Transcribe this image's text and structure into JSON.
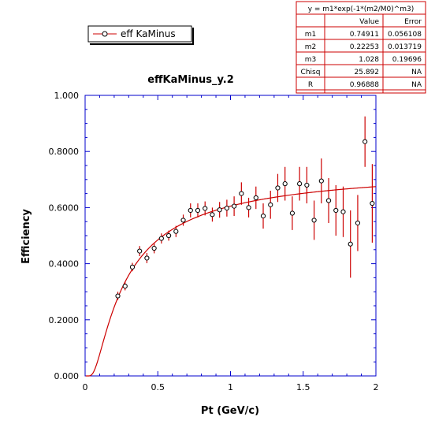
{
  "chart_data": {
    "type": "scatter",
    "title": "effKaMinus_y.2",
    "xlabel": "Pt (GeV/c)",
    "ylabel": "Efficiency",
    "xlim": [
      0,
      2
    ],
    "ylim": [
      0,
      1
    ],
    "x_ticks": [
      "0",
      "0.5",
      "1",
      "1.5",
      "2"
    ],
    "y_ticks": [
      "0.000",
      "0.2000",
      "0.4000",
      "0.6000",
      "0.8000",
      "1.000"
    ],
    "x_tick_values": [
      0,
      0.5,
      1,
      1.5,
      2
    ],
    "y_tick_values": [
      0,
      0.2,
      0.4,
      0.6,
      0.8,
      1.0
    ],
    "legend": {
      "label": "eff KaMinus",
      "placement": "top-left"
    },
    "series": [
      {
        "name": "eff KaMinus",
        "points": [
          {
            "x": 0.225,
            "y": 0.285,
            "err": 0.015
          },
          {
            "x": 0.275,
            "y": 0.32,
            "err": 0.015
          },
          {
            "x": 0.325,
            "y": 0.388,
            "err": 0.015
          },
          {
            "x": 0.375,
            "y": 0.445,
            "err": 0.018
          },
          {
            "x": 0.425,
            "y": 0.42,
            "err": 0.018
          },
          {
            "x": 0.475,
            "y": 0.455,
            "err": 0.018
          },
          {
            "x": 0.525,
            "y": 0.49,
            "err": 0.018
          },
          {
            "x": 0.575,
            "y": 0.5,
            "err": 0.018
          },
          {
            "x": 0.625,
            "y": 0.515,
            "err": 0.02
          },
          {
            "x": 0.675,
            "y": 0.555,
            "err": 0.02
          },
          {
            "x": 0.725,
            "y": 0.59,
            "err": 0.025
          },
          {
            "x": 0.775,
            "y": 0.59,
            "err": 0.025
          },
          {
            "x": 0.825,
            "y": 0.597,
            "err": 0.025
          },
          {
            "x": 0.875,
            "y": 0.575,
            "err": 0.025
          },
          {
            "x": 0.925,
            "y": 0.592,
            "err": 0.028
          },
          {
            "x": 0.975,
            "y": 0.598,
            "err": 0.03
          },
          {
            "x": 1.025,
            "y": 0.605,
            "err": 0.035
          },
          {
            "x": 1.075,
            "y": 0.65,
            "err": 0.04
          },
          {
            "x": 1.125,
            "y": 0.6,
            "err": 0.035
          },
          {
            "x": 1.175,
            "y": 0.635,
            "err": 0.04
          },
          {
            "x": 1.225,
            "y": 0.57,
            "err": 0.045
          },
          {
            "x": 1.275,
            "y": 0.61,
            "err": 0.05
          },
          {
            "x": 1.325,
            "y": 0.67,
            "err": 0.05
          },
          {
            "x": 1.375,
            "y": 0.685,
            "err": 0.06
          },
          {
            "x": 1.425,
            "y": 0.58,
            "err": 0.06
          },
          {
            "x": 1.475,
            "y": 0.685,
            "err": 0.06
          },
          {
            "x": 1.525,
            "y": 0.68,
            "err": 0.065
          },
          {
            "x": 1.575,
            "y": 0.555,
            "err": 0.07
          },
          {
            "x": 1.625,
            "y": 0.695,
            "err": 0.08
          },
          {
            "x": 1.675,
            "y": 0.625,
            "err": 0.08
          },
          {
            "x": 1.725,
            "y": 0.59,
            "err": 0.09
          },
          {
            "x": 1.775,
            "y": 0.585,
            "err": 0.09
          },
          {
            "x": 1.825,
            "y": 0.47,
            "err": 0.12
          },
          {
            "x": 1.875,
            "y": 0.545,
            "err": 0.1
          },
          {
            "x": 1.925,
            "y": 0.835,
            "err": 0.09
          },
          {
            "x": 1.975,
            "y": 0.615,
            "err": 0.14
          }
        ]
      }
    ],
    "fit": {
      "formula": "y = m1*exp(-1*(m2/M0)^m3)",
      "m1": 0.74911,
      "m2": 0.22253,
      "m3": 1.028
    },
    "fit_table": {
      "header": "y = m1*exp(-1*(m2/M0)^m3)",
      "columns": [
        "",
        "Value",
        "Error"
      ],
      "rows": [
        [
          "m1",
          "0.74911",
          "0.056108"
        ],
        [
          "m2",
          "0.22253",
          "0.013719"
        ],
        [
          "m3",
          "1.028",
          "0.19696"
        ],
        [
          "Chisq",
          "25.892",
          "NA"
        ],
        [
          "R",
          "0.96888",
          "NA"
        ]
      ]
    },
    "colors": {
      "axis": "#0000cc",
      "fit_line": "#cc0000",
      "error_bar": "#cc0000",
      "marker": "#000000",
      "table_border": "#cc0000"
    }
  }
}
